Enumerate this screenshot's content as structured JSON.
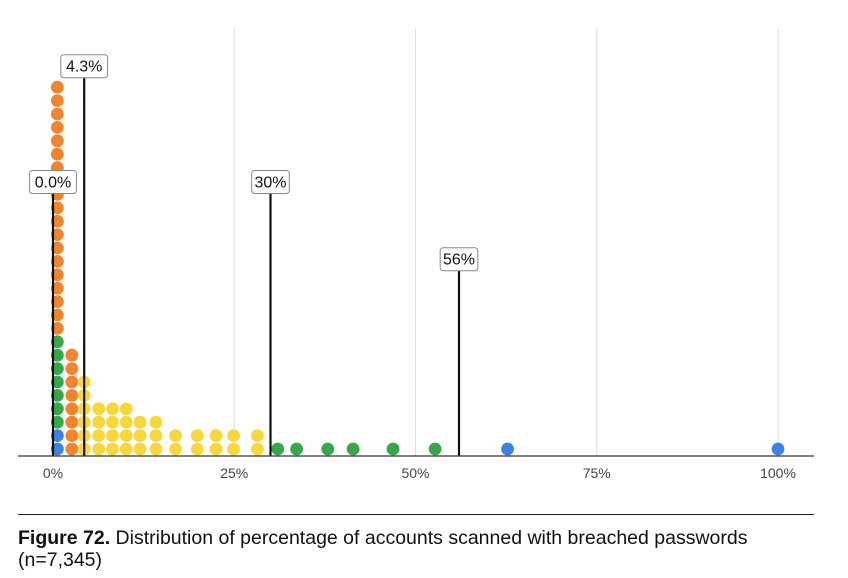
{
  "chart_data": {
    "type": "scatter",
    "subtype": "dot-distribution",
    "title": "",
    "xlabel": "",
    "ylabel": "",
    "xlim": [
      0,
      100
    ],
    "x_ticks": [
      "0%",
      "25%",
      "50%",
      "75%",
      "100%"
    ],
    "x_tick_values": [
      0,
      25,
      50,
      75,
      100
    ],
    "grid": "vertical",
    "colors": [
      "#3b82e6",
      "#36a84a",
      "#f2842d",
      "#f7d83c"
    ],
    "columns": [
      {
        "x": 0.6,
        "stack": [
          "#3b82e6",
          "#3b82e6",
          "#36a84a",
          "#36a84a",
          "#36a84a",
          "#36a84a",
          "#36a84a",
          "#36a84a",
          "#36a84a",
          "#f2842d",
          "#f2842d",
          "#f2842d",
          "#f2842d",
          "#f2842d",
          "#f2842d",
          "#f2842d",
          "#f2842d",
          "#f2842d",
          "#f2842d",
          "#f2842d",
          "#f2842d",
          "#f2842d",
          "#f2842d",
          "#f2842d",
          "#f2842d",
          "#f2842d",
          "#f2842d",
          "#f2842d"
        ]
      },
      {
        "x": 2.6,
        "stack": [
          "#f2842d",
          "#f2842d",
          "#f2842d",
          "#f2842d",
          "#f2842d",
          "#f2842d",
          "#f2842d",
          "#f2842d"
        ]
      },
      {
        "x": 4.3,
        "stack": [
          "#f7d83c",
          "#f7d83c",
          "#f7d83c",
          "#f7d83c",
          "#f7d83c",
          "#f7d83c"
        ]
      },
      {
        "x": 6.3,
        "stack": [
          "#f7d83c",
          "#f7d83c",
          "#f7d83c",
          "#f7d83c"
        ]
      },
      {
        "x": 8.2,
        "stack": [
          "#f7d83c",
          "#f7d83c",
          "#f7d83c",
          "#f7d83c"
        ]
      },
      {
        "x": 10.1,
        "stack": [
          "#f7d83c",
          "#f7d83c",
          "#f7d83c",
          "#f7d83c"
        ]
      },
      {
        "x": 12.0,
        "stack": [
          "#f7d83c",
          "#f7d83c",
          "#f7d83c"
        ]
      },
      {
        "x": 14.2,
        "stack": [
          "#f7d83c",
          "#f7d83c",
          "#f7d83c"
        ]
      },
      {
        "x": 16.9,
        "stack": [
          "#f7d83c",
          "#f7d83c"
        ]
      },
      {
        "x": 19.9,
        "stack": [
          "#f7d83c",
          "#f7d83c"
        ]
      },
      {
        "x": 22.5,
        "stack": [
          "#f7d83c",
          "#f7d83c"
        ]
      },
      {
        "x": 24.9,
        "stack": [
          "#f7d83c",
          "#f7d83c"
        ]
      },
      {
        "x": 28.2,
        "stack": [
          "#f7d83c",
          "#f7d83c"
        ]
      },
      {
        "x": 31.0,
        "stack": [
          "#36a84a"
        ]
      },
      {
        "x": 33.6,
        "stack": [
          "#36a84a"
        ]
      },
      {
        "x": 37.9,
        "stack": [
          "#36a84a"
        ]
      },
      {
        "x": 41.4,
        "stack": [
          "#36a84a"
        ]
      },
      {
        "x": 46.9,
        "stack": [
          "#36a84a"
        ]
      },
      {
        "x": 52.7,
        "stack": [
          "#36a84a"
        ]
      },
      {
        "x": 62.7,
        "stack": [
          "#3b82e6"
        ]
      },
      {
        "x": 100.0,
        "stack": [
          "#3b82e6"
        ]
      }
    ],
    "annotations": [
      {
        "x": 0.0,
        "label": "0.0%",
        "level": 0.68
      },
      {
        "x": 4.3,
        "label": "4.3%",
        "level": 0.98
      },
      {
        "x": 30.0,
        "label": "30%",
        "level": 0.68
      },
      {
        "x": 56.0,
        "label": "56%",
        "level": 0.48
      }
    ]
  },
  "caption": {
    "figure_label": "Figure 72.",
    "text": " Distribution of percentage of accounts scanned with breached passwords (n=7,345)"
  }
}
